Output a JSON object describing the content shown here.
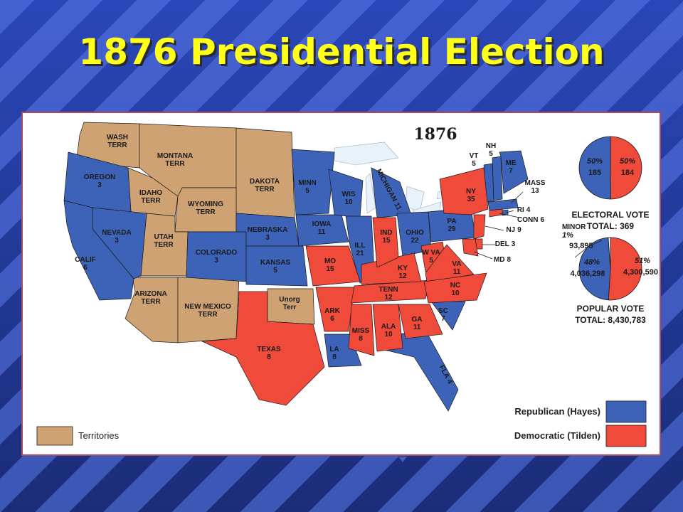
{
  "title": "1876 Presidential Election",
  "map": {
    "year": "1876",
    "legend": {
      "republican": {
        "label": "Republican (Hayes)",
        "color": "#3d63b8"
      },
      "democratic": {
        "label": "Democratic (Tilden)",
        "color": "#f04a3a"
      },
      "territories": {
        "label": "Territories",
        "color": "#cfa273"
      }
    },
    "regions": [
      {
        "name": "WASH",
        "sub": "TERR",
        "party": "territories"
      },
      {
        "name": "MONTANA",
        "sub": "TERR",
        "party": "territories"
      },
      {
        "name": "DAKOTA",
        "sub": "TERR",
        "party": "territories"
      },
      {
        "name": "IDAHO",
        "sub": "TERR",
        "party": "territories"
      },
      {
        "name": "WYOMING",
        "sub": "TERR",
        "party": "territories"
      },
      {
        "name": "UTAH",
        "sub": "TERR",
        "party": "territories"
      },
      {
        "name": "ARIZONA",
        "sub": "TERR",
        "party": "territories"
      },
      {
        "name": "NEW MEXICO",
        "sub": "TERR",
        "party": "territories"
      },
      {
        "name": "Unorg",
        "sub": "Terr",
        "party": "territories"
      },
      {
        "name": "OREGON",
        "sub": 3,
        "party": "republican"
      },
      {
        "name": "NEVADA",
        "sub": 3,
        "party": "republican"
      },
      {
        "name": "CALIF",
        "sub": 6,
        "party": "republican"
      },
      {
        "name": "COLORADO",
        "sub": 3,
        "party": "republican"
      },
      {
        "name": "NEBRASKA",
        "sub": 3,
        "party": "republican"
      },
      {
        "name": "KANSAS",
        "sub": 5,
        "party": "republican"
      },
      {
        "name": "MINN",
        "sub": 5,
        "party": "republican"
      },
      {
        "name": "IOWA",
        "sub": 11,
        "party": "republican"
      },
      {
        "name": "WIS",
        "sub": 10,
        "party": "republican"
      },
      {
        "name": "MICHIGAN",
        "sub": 11,
        "party": "republican"
      },
      {
        "name": "ILL",
        "sub": 21,
        "party": "republican"
      },
      {
        "name": "OHIO",
        "sub": 22,
        "party": "republican"
      },
      {
        "name": "PA",
        "sub": 29,
        "party": "republican"
      },
      {
        "name": "VT",
        "sub": 5,
        "party": "republican"
      },
      {
        "name": "NH",
        "sub": 5,
        "party": "republican"
      },
      {
        "name": "ME",
        "sub": 7,
        "party": "republican"
      },
      {
        "name": "MASS",
        "sub": 13,
        "party": "republican"
      },
      {
        "name": "RI",
        "sub": 4,
        "party": "republican"
      },
      {
        "name": "SC",
        "sub": 7,
        "party": "republican"
      },
      {
        "name": "LA",
        "sub": 8,
        "party": "republican"
      },
      {
        "name": "FLA",
        "sub": 4,
        "party": "republican"
      },
      {
        "name": "TEXAS",
        "sub": 8,
        "party": "democratic"
      },
      {
        "name": "MO",
        "sub": 15,
        "party": "democratic"
      },
      {
        "name": "ARK",
        "sub": 6,
        "party": "democratic"
      },
      {
        "name": "MISS",
        "sub": 8,
        "party": "democratic"
      },
      {
        "name": "ALA",
        "sub": 10,
        "party": "democratic"
      },
      {
        "name": "GA",
        "sub": 11,
        "party": "democratic"
      },
      {
        "name": "TENN",
        "sub": 12,
        "party": "democratic"
      },
      {
        "name": "KY",
        "sub": 12,
        "party": "democratic"
      },
      {
        "name": "IND",
        "sub": 15,
        "party": "democratic"
      },
      {
        "name": "W VA",
        "sub": 5,
        "party": "democratic"
      },
      {
        "name": "VA",
        "sub": 11,
        "party": "democratic"
      },
      {
        "name": "NC",
        "sub": 10,
        "party": "democratic"
      },
      {
        "name": "NY",
        "sub": 35,
        "party": "democratic"
      },
      {
        "name": "NJ",
        "sub": 9,
        "party": "democratic"
      },
      {
        "name": "DEL",
        "sub": 3,
        "party": "democratic"
      },
      {
        "name": "MD",
        "sub": 8,
        "party": "democratic"
      },
      {
        "name": "CONN",
        "sub": 6,
        "party": "democratic"
      }
    ],
    "pies": [
      {
        "title": "ELECTORAL VOTE",
        "total": "TOTAL:  369",
        "slices": [
          {
            "party": "democratic",
            "percent": "50%",
            "value": 184
          },
          {
            "party": "republican",
            "percent": "50%",
            "value": 185
          }
        ]
      },
      {
        "title": "POPULAR VOTE",
        "total": "TOTAL:  8,430,783",
        "slices": [
          {
            "party": "democratic",
            "percent": "51%",
            "value": {
              "value": 4300590,
              "label": "4,300,590"
            }
          },
          {
            "party": "republican",
            "percent": "48%",
            "value": {
              "value": 4036298,
              "label": "4,036,298"
            }
          },
          {
            "name": "MINOR",
            "color": "#ffffff",
            "percent": "1%",
            "value": {
              "value": 93895,
              "label": "93,895"
            }
          }
        ]
      }
    ]
  }
}
